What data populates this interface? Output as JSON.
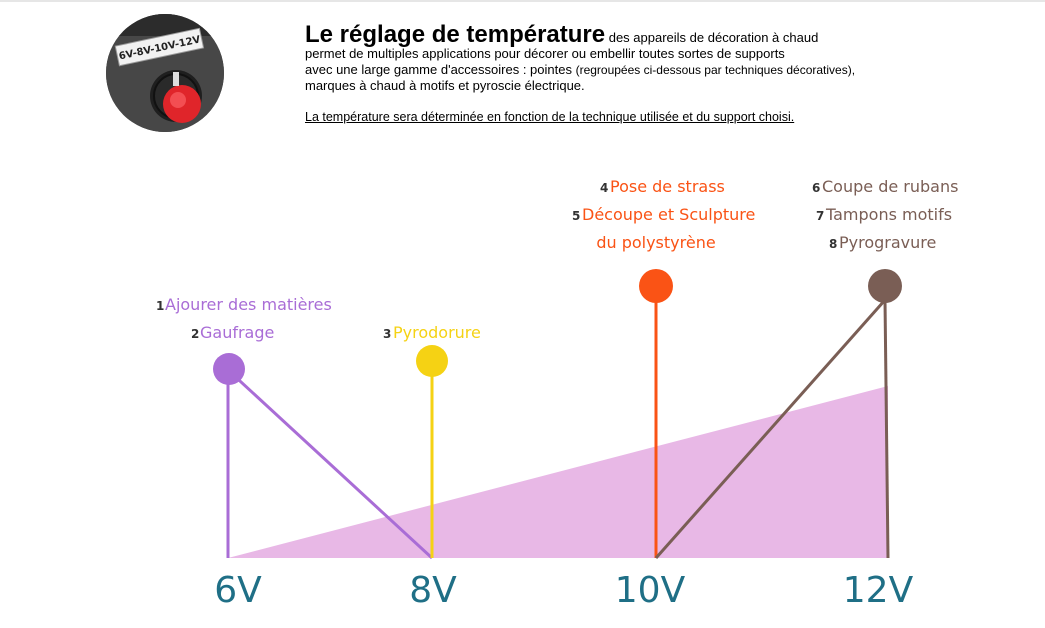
{
  "photo": {
    "label": "6V-8V-10V-12V"
  },
  "header": {
    "title": "Le réglage de température",
    "intro_a": " des appareils de décoration à chaud",
    "intro_b": "permet de multiples applications pour décorer ou embellir toutes sortes de supports",
    "intro_c1": "avec une large gamme d'accessoires : pointes ",
    "intro_c2": "(regroupées ci-dessous par techniques décoratives),",
    "intro_d": "marques à chaud à motifs et pyroscie électrique.",
    "note": "La température sera déterminée en fonction de la technique utilisée et du support choisi."
  },
  "colors": {
    "purple": "#a96dd6",
    "yellow": "#f5d214",
    "orange": "#fa5315",
    "brown": "#7a5e55",
    "fill": "#e8b8e6",
    "axis": "#1f6f86"
  },
  "chart_data": {
    "type": "diagram",
    "voltages": [
      "6V",
      "8V",
      "10V",
      "12V"
    ],
    "groups": [
      {
        "voltage": "6V",
        "color": "purple",
        "items": [
          {
            "num": "1",
            "text": "Ajourer des matières"
          },
          {
            "num": "2",
            "text": "Gaufrage"
          }
        ]
      },
      {
        "voltage": "8V",
        "color": "yellow",
        "items": [
          {
            "num": "3",
            "text": "Pyrodorure"
          }
        ]
      },
      {
        "voltage": "10V",
        "color": "orange",
        "items": [
          {
            "num": "4",
            "text": "Pose de strass"
          },
          {
            "num": "5",
            "text": "Découpe et Sculpture"
          },
          {
            "num": "",
            "text": "du polystyrène"
          }
        ]
      },
      {
        "voltage": "12V",
        "color": "brown",
        "items": [
          {
            "num": "6",
            "text": "Coupe de rubans"
          },
          {
            "num": "7",
            "text": "Tampons motifs"
          },
          {
            "num": "8",
            "text": "Pyrogravure"
          }
        ]
      }
    ]
  }
}
